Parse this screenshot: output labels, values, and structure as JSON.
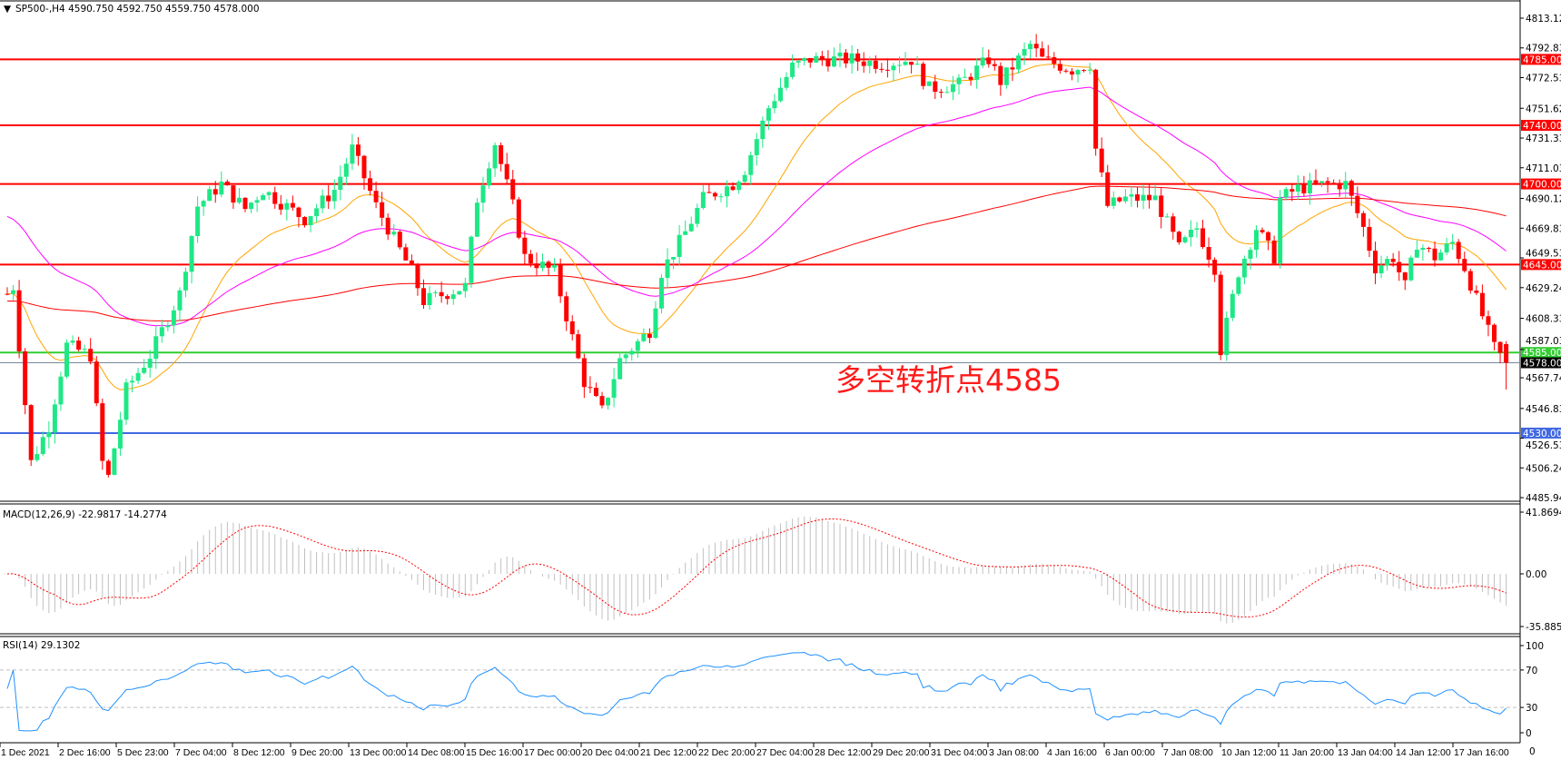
{
  "header": {
    "symbol_info": "SP500-,H4  4590.750 4592.750 4559.750 4578.000",
    "menu_icon": "triangle-down-icon"
  },
  "chart_data": {
    "type": "candlestick",
    "title": "SP500-,H4",
    "ohlc_last": {
      "open": 4590.75,
      "high": 4592.75,
      "low": 4559.75,
      "close": 4578.0
    },
    "ylim": [
      4485.945,
      4823.0
    ],
    "price_ticks": [
      "4813.125",
      "4792.830",
      "4772.535",
      "4751.625",
      "4731.330",
      "4711.035",
      "4690.125",
      "4669.830",
      "4649.535",
      "4629.240",
      "4608.330",
      "4587.035",
      "4567.740",
      "4546.830",
      "4526.535",
      "4506.240",
      "4485.945"
    ],
    "time_labels": [
      "1 Dec 2021",
      "2 Dec 16:00",
      "5 Dec 23:00",
      "7 Dec 04:00",
      "8 Dec 12:00",
      "9 Dec 20:00",
      "13 Dec 00:00",
      "14 Dec 08:00",
      "15 Dec 16:00",
      "17 Dec 00:00",
      "20 Dec 04:00",
      "21 Dec 12:00",
      "22 Dec 20:00",
      "27 Dec 04:00",
      "28 Dec 12:00",
      "29 Dec 20:00",
      "31 Dec 04:00",
      "3 Jan 08:00",
      "4 Jan 16:00",
      "6 Jan 00:00",
      "7 Jan 08:00",
      "10 Jan 12:00",
      "11 Jan 20:00",
      "13 Jan 04:00",
      "14 Jan 12:00",
      "17 Jan 16:00"
    ],
    "price_path": [
      [
        0,
        4625
      ],
      [
        1,
        4630
      ],
      [
        2,
        4590
      ],
      [
        4,
        4510
      ],
      [
        7,
        4535
      ],
      [
        10,
        4590
      ],
      [
        14,
        4583
      ],
      [
        16,
        4510
      ],
      [
        17,
        4500
      ],
      [
        20,
        4560
      ],
      [
        24,
        4583
      ],
      [
        29,
        4625
      ],
      [
        32,
        4685
      ],
      [
        36,
        4700
      ],
      [
        40,
        4683
      ],
      [
        43,
        4696
      ],
      [
        50,
        4676
      ],
      [
        55,
        4696
      ],
      [
        58,
        4724
      ],
      [
        62,
        4685
      ],
      [
        68,
        4640
      ],
      [
        70,
        4620
      ],
      [
        77,
        4630
      ],
      [
        79,
        4690
      ],
      [
        82,
        4728
      ],
      [
        85,
        4685
      ],
      [
        87,
        4650
      ],
      [
        92,
        4640
      ],
      [
        97,
        4565
      ],
      [
        100,
        4545
      ],
      [
        103,
        4580
      ],
      [
        108,
        4600
      ],
      [
        110,
        4640
      ],
      [
        114,
        4667
      ],
      [
        117,
        4690
      ],
      [
        122,
        4700
      ],
      [
        124,
        4710
      ],
      [
        128,
        4752
      ],
      [
        132,
        4780
      ],
      [
        135,
        4785
      ],
      [
        142,
        4785
      ],
      [
        147,
        4782
      ],
      [
        152,
        4785
      ],
      [
        155,
        4765
      ],
      [
        160,
        4768
      ],
      [
        165,
        4785
      ],
      [
        167,
        4770
      ],
      [
        172,
        4795
      ],
      [
        174,
        4785
      ],
      [
        179,
        4778
      ],
      [
        182,
        4782
      ],
      [
        183,
        4724
      ],
      [
        185,
        4685
      ],
      [
        188,
        4690
      ],
      [
        193,
        4690
      ],
      [
        197,
        4656
      ],
      [
        200,
        4670
      ],
      [
        203,
        4643
      ],
      [
        204,
        4587
      ],
      [
        207,
        4640
      ],
      [
        210,
        4670
      ],
      [
        213,
        4650
      ],
      [
        214,
        4690
      ],
      [
        217,
        4697
      ],
      [
        222,
        4700
      ],
      [
        225,
        4700
      ],
      [
        228,
        4670
      ],
      [
        230,
        4643
      ],
      [
        233,
        4650
      ],
      [
        235,
        4630
      ],
      [
        237,
        4660
      ],
      [
        240,
        4650
      ],
      [
        243,
        4660
      ],
      [
        245,
        4643
      ],
      [
        248,
        4610
      ],
      [
        250,
        4588
      ],
      [
        252,
        4578
      ]
    ],
    "levels": [
      {
        "price": 4785,
        "label": "4785.000",
        "color": "#ff0000"
      },
      {
        "price": 4740,
        "label": "4740.000",
        "color": "#ff0000"
      },
      {
        "price": 4700,
        "label": "4700.000",
        "color": "#ff0000"
      },
      {
        "price": 4645,
        "label": "4645.000",
        "color": "#ff0000"
      },
      {
        "price": 4585,
        "label": "4585.000",
        "color": "#32cd32"
      },
      {
        "price": 4578,
        "label": "4578.000",
        "color": "#000000",
        "line_color": "#778899"
      },
      {
        "price": 4530,
        "label": "4530.000",
        "color": "#4169e1"
      }
    ],
    "annotation": "多空转折点4585",
    "colors": {
      "bull": "#1ee886",
      "bear": "#ff0000",
      "ma_fast": "#ffa500",
      "ma_mid": "#ff00ff",
      "ma_slow": "#ff0000"
    },
    "moving_averages": [
      {
        "color": "#ffa500"
      },
      {
        "color": "#ff00ff"
      },
      {
        "color": "#ff0000"
      }
    ]
  },
  "macd": {
    "label": "MACD(12,26,9) -22.9817 -14.2774",
    "ticks": [
      "41.8694",
      "0.00",
      "-35.8856"
    ],
    "range": [
      -35.8856,
      41.8694
    ],
    "hist_color": "#c0c0c0",
    "signal_color": "#ff0000"
  },
  "rsi": {
    "label": "RSI(14) 29.1302",
    "ticks": [
      "100",
      "70",
      "30",
      "0"
    ],
    "levels": [
      70,
      30
    ],
    "line_color": "#1e90ff",
    "value": 29.1302
  },
  "corner_label": "0"
}
